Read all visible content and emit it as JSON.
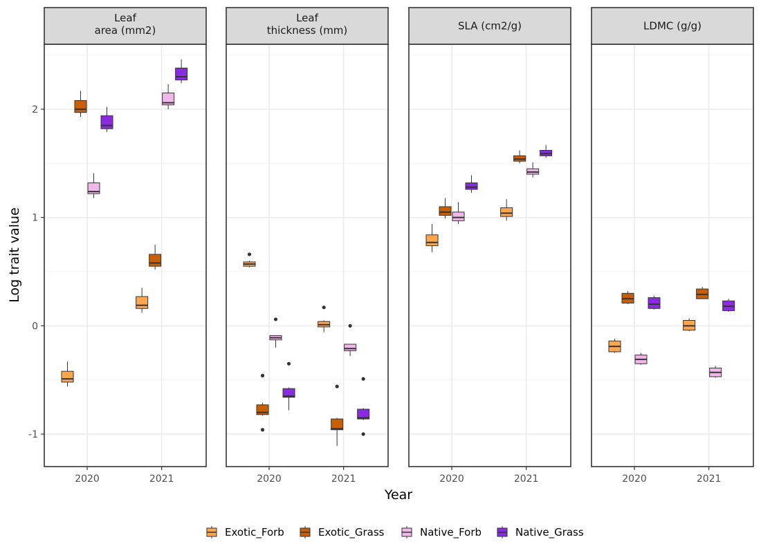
{
  "chart_data": {
    "type": "boxplot",
    "xlabel": "Year",
    "ylabel": "Log trait value",
    "ylim": [
      -1.3,
      2.6
    ],
    "y_ticks": [
      -1,
      0,
      1,
      2
    ],
    "y_tick_labels": [
      "-1",
      "0",
      "1",
      "2"
    ],
    "categories": [
      "2020",
      "2021"
    ],
    "grid": true,
    "legend_position": "bottom",
    "series": [
      {
        "name": "Exotic_Forb",
        "color": "#FDA650"
      },
      {
        "name": "Exotic_Grass",
        "color": "#C95F04"
      },
      {
        "name": "Native_Forb",
        "color": "#F1B6EA"
      },
      {
        "name": "Native_Grass",
        "color": "#8A2BE2"
      }
    ],
    "panels": [
      {
        "title_lines": [
          "Leaf",
          "area (mm2)"
        ],
        "boxes": [
          {
            "year": "2020",
            "series": "Exotic_Forb",
            "lower_whisker": -0.56,
            "q1": -0.52,
            "median": -0.49,
            "q3": -0.42,
            "upper_whisker": -0.33,
            "outliers": []
          },
          {
            "year": "2020",
            "series": "Exotic_Grass",
            "lower_whisker": 1.93,
            "q1": 1.97,
            "median": 2.0,
            "q3": 2.08,
            "upper_whisker": 2.17,
            "outliers": []
          },
          {
            "year": "2020",
            "series": "Native_Forb",
            "lower_whisker": 1.18,
            "q1": 1.22,
            "median": 1.24,
            "q3": 1.32,
            "upper_whisker": 1.41,
            "outliers": []
          },
          {
            "year": "2020",
            "series": "Native_Grass",
            "lower_whisker": 1.79,
            "q1": 1.82,
            "median": 1.85,
            "q3": 1.94,
            "upper_whisker": 2.02,
            "outliers": []
          },
          {
            "year": "2021",
            "series": "Exotic_Forb",
            "lower_whisker": 0.12,
            "q1": 0.16,
            "median": 0.19,
            "q3": 0.27,
            "upper_whisker": 0.35,
            "outliers": []
          },
          {
            "year": "2021",
            "series": "Exotic_Grass",
            "lower_whisker": 0.52,
            "q1": 0.55,
            "median": 0.58,
            "q3": 0.66,
            "upper_whisker": 0.75,
            "outliers": []
          },
          {
            "year": "2021",
            "series": "Native_Forb",
            "lower_whisker": 2.0,
            "q1": 2.04,
            "median": 2.06,
            "q3": 2.15,
            "upper_whisker": 2.23,
            "outliers": []
          },
          {
            "year": "2021",
            "series": "Native_Grass",
            "lower_whisker": 2.24,
            "q1": 2.27,
            "median": 2.3,
            "q3": 2.38,
            "upper_whisker": 2.46,
            "outliers": []
          }
        ]
      },
      {
        "title_lines": [
          "Leaf",
          "thickness (mm)"
        ],
        "boxes": [
          {
            "year": "2020",
            "series": "Exotic_Forb",
            "lower_whisker": 0.54,
            "q1": 0.55,
            "median": 0.57,
            "q3": 0.59,
            "upper_whisker": 0.6,
            "outliers": [
              0.66
            ]
          },
          {
            "year": "2020",
            "series": "Exotic_Grass",
            "lower_whisker": -0.83,
            "q1": -0.82,
            "median": -0.8,
            "q3": -0.73,
            "upper_whisker": -0.71,
            "outliers": [
              -0.46,
              -0.96
            ]
          },
          {
            "year": "2020",
            "series": "Native_Forb",
            "lower_whisker": -0.2,
            "q1": -0.13,
            "median": -0.11,
            "q3": -0.09,
            "upper_whisker": -0.09,
            "outliers": [
              0.06
            ]
          },
          {
            "year": "2020",
            "series": "Native_Grass",
            "lower_whisker": -0.78,
            "q1": -0.66,
            "median": -0.65,
            "q3": -0.58,
            "upper_whisker": -0.57,
            "outliers": [
              -0.35
            ]
          },
          {
            "year": "2021",
            "series": "Exotic_Forb",
            "lower_whisker": -0.06,
            "q1": -0.01,
            "median": 0.01,
            "q3": 0.04,
            "upper_whisker": 0.05,
            "outliers": [
              0.17
            ]
          },
          {
            "year": "2021",
            "series": "Exotic_Grass",
            "lower_whisker": -1.11,
            "q1": -0.96,
            "median": -0.95,
            "q3": -0.86,
            "upper_whisker": -0.85,
            "outliers": [
              -0.56
            ]
          },
          {
            "year": "2021",
            "series": "Native_Forb",
            "lower_whisker": -0.28,
            "q1": -0.23,
            "median": -0.21,
            "q3": -0.17,
            "upper_whisker": -0.17,
            "outliers": [
              0.0
            ]
          },
          {
            "year": "2021",
            "series": "Native_Grass",
            "lower_whisker": -0.87,
            "q1": -0.86,
            "median": -0.85,
            "q3": -0.77,
            "upper_whisker": -0.76,
            "outliers": [
              -0.49,
              -1.0
            ]
          }
        ]
      },
      {
        "title_lines": [
          "SLA (cm2/g)"
        ],
        "boxes": [
          {
            "year": "2020",
            "series": "Exotic_Forb",
            "lower_whisker": 0.68,
            "q1": 0.74,
            "median": 0.77,
            "q3": 0.84,
            "upper_whisker": 0.94,
            "outliers": []
          },
          {
            "year": "2020",
            "series": "Exotic_Grass",
            "lower_whisker": 0.99,
            "q1": 1.02,
            "median": 1.05,
            "q3": 1.1,
            "upper_whisker": 1.18,
            "outliers": []
          },
          {
            "year": "2020",
            "series": "Native_Forb",
            "lower_whisker": 0.94,
            "q1": 0.97,
            "median": 1.0,
            "q3": 1.05,
            "upper_whisker": 1.14,
            "outliers": []
          },
          {
            "year": "2020",
            "series": "Native_Grass",
            "lower_whisker": 1.23,
            "q1": 1.26,
            "median": 1.28,
            "q3": 1.32,
            "upper_whisker": 1.39,
            "outliers": []
          },
          {
            "year": "2021",
            "series": "Exotic_Forb",
            "lower_whisker": 0.97,
            "q1": 1.01,
            "median": 1.04,
            "q3": 1.09,
            "upper_whisker": 1.17,
            "outliers": []
          },
          {
            "year": "2021",
            "series": "Exotic_Grass",
            "lower_whisker": 1.5,
            "q1": 1.52,
            "median": 1.54,
            "q3": 1.57,
            "upper_whisker": 1.62,
            "outliers": []
          },
          {
            "year": "2021",
            "series": "Native_Forb",
            "lower_whisker": 1.37,
            "q1": 1.4,
            "median": 1.42,
            "q3": 1.45,
            "upper_whisker": 1.51,
            "outliers": []
          },
          {
            "year": "2021",
            "series": "Native_Grass",
            "lower_whisker": 1.55,
            "q1": 1.57,
            "median": 1.59,
            "q3": 1.62,
            "upper_whisker": 1.67,
            "outliers": []
          }
        ]
      },
      {
        "title_lines": [
          "LDMC (g/g)"
        ],
        "boxes": [
          {
            "year": "2020",
            "series": "Exotic_Forb",
            "lower_whisker": -0.25,
            "q1": -0.24,
            "median": -0.19,
            "q3": -0.14,
            "upper_whisker": -0.12,
            "outliers": []
          },
          {
            "year": "2020",
            "series": "Exotic_Grass",
            "lower_whisker": 0.2,
            "q1": 0.21,
            "median": 0.25,
            "q3": 0.3,
            "upper_whisker": 0.32,
            "outliers": []
          },
          {
            "year": "2020",
            "series": "Native_Forb",
            "lower_whisker": -0.36,
            "q1": -0.35,
            "median": -0.31,
            "q3": -0.27,
            "upper_whisker": -0.25,
            "outliers": []
          },
          {
            "year": "2020",
            "series": "Native_Grass",
            "lower_whisker": 0.15,
            "q1": 0.16,
            "median": 0.2,
            "q3": 0.26,
            "upper_whisker": 0.28,
            "outliers": []
          },
          {
            "year": "2021",
            "series": "Exotic_Forb",
            "lower_whisker": -0.05,
            "q1": -0.04,
            "median": 0.0,
            "q3": 0.05,
            "upper_whisker": 0.07,
            "outliers": []
          },
          {
            "year": "2021",
            "series": "Exotic_Grass",
            "lower_whisker": 0.25,
            "q1": 0.25,
            "median": 0.29,
            "q3": 0.34,
            "upper_whisker": 0.36,
            "outliers": []
          },
          {
            "year": "2021",
            "series": "Native_Forb",
            "lower_whisker": -0.48,
            "q1": -0.47,
            "median": -0.43,
            "q3": -0.39,
            "upper_whisker": -0.37,
            "outliers": []
          },
          {
            "year": "2021",
            "series": "Native_Grass",
            "lower_whisker": 0.13,
            "q1": 0.14,
            "median": 0.18,
            "q3": 0.23,
            "upper_whisker": 0.25,
            "outliers": []
          }
        ]
      }
    ]
  }
}
